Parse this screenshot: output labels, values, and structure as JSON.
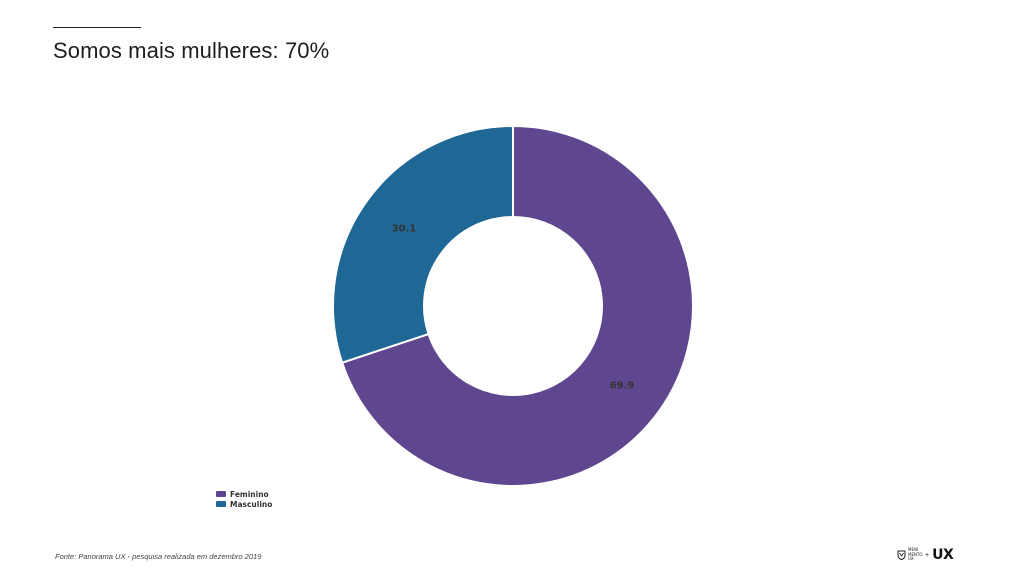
{
  "page": {
    "title": "Somos mais mulheres: 70%",
    "source": "Fonte: Panorama UX - pesquisa realizada em dezembro 2019"
  },
  "logo": {
    "small_text": "MENI\nMENTO\nUX",
    "mark": "UX"
  },
  "chart_data": {
    "type": "pie",
    "style": "donut",
    "title": "",
    "series": [
      {
        "name": "Feminino",
        "value": 69.9,
        "color": "#5e478f"
      },
      {
        "name": "Masculino",
        "value": 30.1,
        "color": "#1f6896"
      }
    ],
    "legend": "bottom-left"
  }
}
